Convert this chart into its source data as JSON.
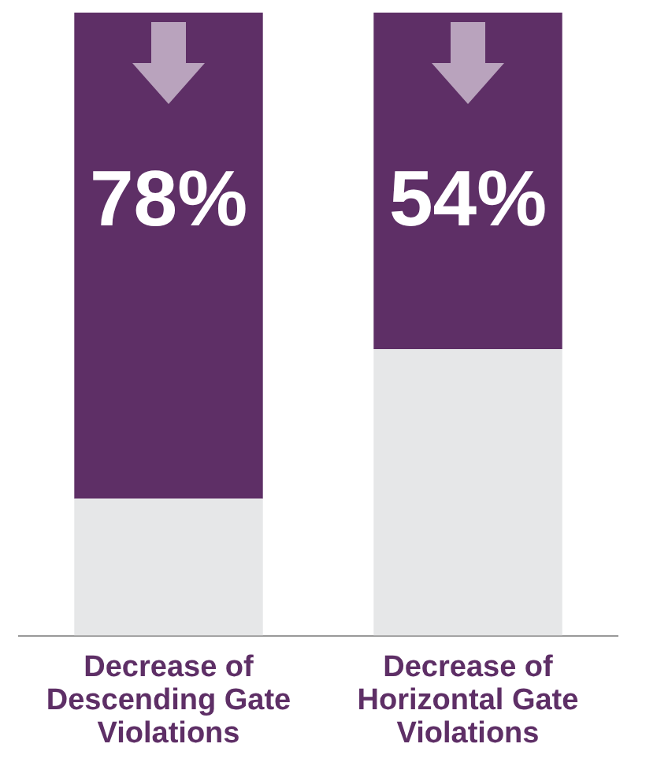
{
  "chart_data": {
    "type": "bar",
    "stacked": true,
    "categories": [
      "Decrease of Descending Gate Violations",
      "Decrease of Horizontal Gate Violations"
    ],
    "series": [
      {
        "color": "#e6e7e8",
        "values": [
          22,
          46
        ]
      },
      {
        "color": "#5e2f66",
        "values": [
          78,
          54
        ],
        "value_labels": [
          "78%",
          "54%"
        ]
      }
    ],
    "ylim": [
      0,
      100
    ],
    "tick_labels": "x",
    "grid": false,
    "legend": false
  }
}
